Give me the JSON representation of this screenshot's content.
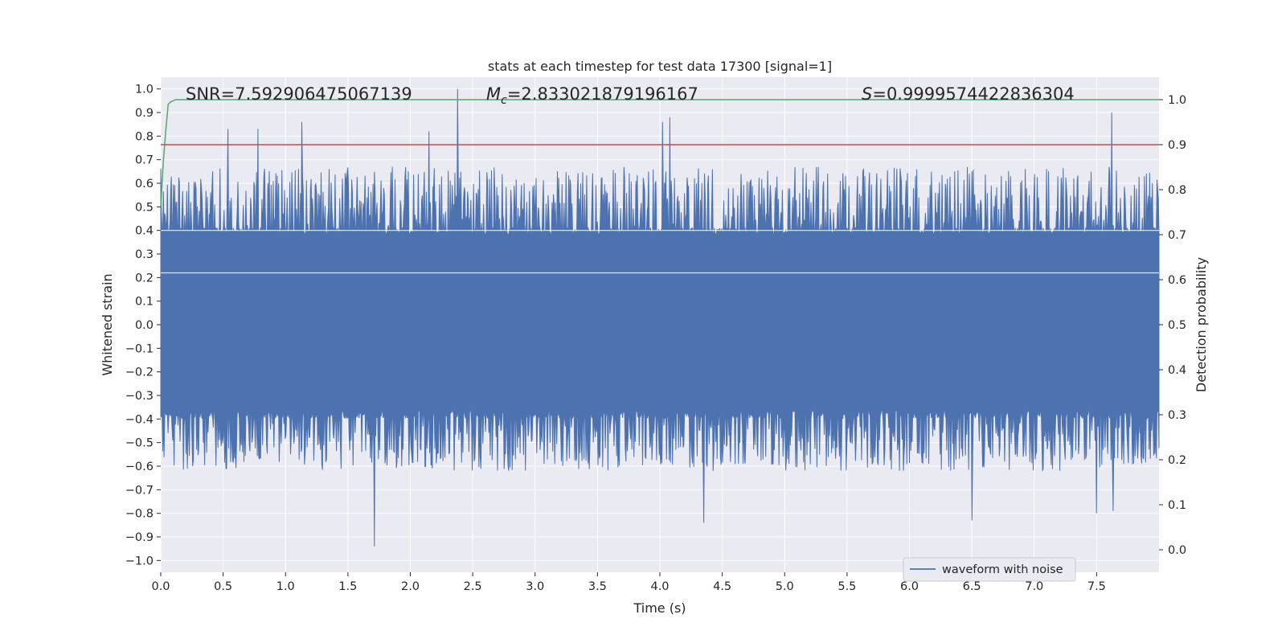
{
  "chart_data": {
    "type": "line",
    "title": "stats at each timestep for test data 17300 [signal=1]",
    "xlabel": "Time (s)",
    "ylabel": "Whitened strain",
    "ylabel_right": "Detection probability",
    "xlim": [
      0.0,
      8.0
    ],
    "ylim": [
      -1.05,
      1.05
    ],
    "ylim_right": [
      -0.05,
      1.05
    ],
    "xticks": [
      "0.0",
      "0.5",
      "1.0",
      "1.5",
      "2.0",
      "2.5",
      "3.0",
      "3.5",
      "4.0",
      "4.5",
      "5.0",
      "5.5",
      "6.0",
      "6.5",
      "7.0",
      "7.5"
    ],
    "yticks_left": [
      "1.0",
      "0.9",
      "0.8",
      "0.7",
      "0.6",
      "0.5",
      "0.4",
      "0.3",
      "0.2",
      "0.1",
      "0.0",
      "−0.1",
      "−0.2",
      "−0.3",
      "−0.4",
      "−0.5",
      "−0.6",
      "−0.7",
      "−0.8",
      "−0.9",
      "−1.0"
    ],
    "yticks_right": [
      "1.0",
      "0.9",
      "0.8",
      "0.7",
      "0.6",
      "0.5",
      "0.4",
      "0.3",
      "0.2",
      "0.1",
      "0.0"
    ],
    "grid": true,
    "annotations": {
      "snr": "SNR=7.592906475067139",
      "mc_symbol": "M",
      "mc_sub": "c",
      "mc_value": "=2.833021879196167",
      "s_symbol": "S",
      "s_value": "=0.9999574422836304"
    },
    "series": [
      {
        "name": "waveform with noise",
        "axis": "left",
        "color": "#4c72b0",
        "description": "noisy whitened strain, core band about ±0.4 with spikes",
        "core_amplitude": 0.4,
        "spikes_max": [
          [
            0.54,
            0.83
          ],
          [
            0.78,
            0.83
          ],
          [
            1.13,
            0.86
          ],
          [
            2.15,
            0.82
          ],
          [
            2.38,
            1.0
          ],
          [
            4.02,
            0.86
          ],
          [
            4.08,
            0.88
          ],
          [
            7.62,
            0.9
          ]
        ],
        "spikes_min": [
          [
            1.71,
            -0.94
          ],
          [
            4.35,
            -0.84
          ],
          [
            6.5,
            -0.83
          ],
          [
            7.5,
            -0.8
          ],
          [
            7.63,
            -0.79
          ]
        ]
      },
      {
        "name": "detection probability",
        "axis": "right",
        "color": "#55a868",
        "x": [
          0.0,
          0.02,
          0.04,
          0.06,
          0.08,
          0.12,
          0.2,
          8.0
        ],
        "values": [
          0.76,
          0.86,
          0.93,
          0.99,
          0.995,
          1.0,
          1.0,
          1.0
        ]
      },
      {
        "name": "threshold",
        "axis": "right",
        "color": "#c44e52",
        "x": [
          0.0,
          8.0
        ],
        "values": [
          0.9,
          0.9
        ]
      }
    ],
    "legend": {
      "position": "lower-right",
      "entries": [
        {
          "label": "waveform with noise",
          "color": "#4c72b0"
        }
      ]
    }
  }
}
